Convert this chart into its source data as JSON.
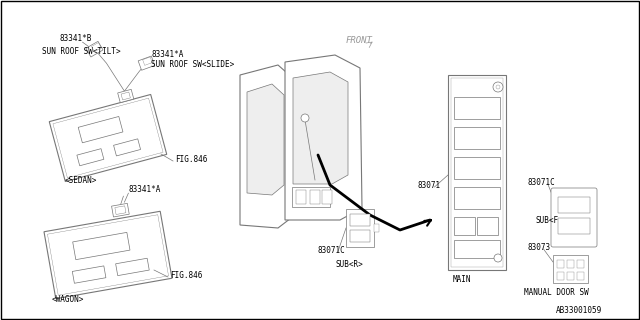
{
  "bg_color": "#FFFFFF",
  "lc": "#777777",
  "tc": "#000000",
  "labels": {
    "sedan": "<SEDAN>",
    "wagon": "<WAGON>",
    "fig846_sedan": "FIG.846",
    "fig846_wagon": "FIG.846",
    "front": "FRONT",
    "main": "MAIN",
    "subr": "SUB<R>",
    "subf": "SUB<F>",
    "p83341b": "83341*B",
    "p83341a_tilt": "83341*A",
    "sun_roof_tilt": "SUN ROOF SW<TILT>",
    "sun_roof_slide": "SUN ROOF SW<SLIDE>",
    "p83341a_wagon": "83341*A",
    "p83071": "83071",
    "p83071c_subr": "83071C",
    "p83071c_subf": "83071C",
    "p83073": "83073",
    "manual_door": "MANUAL DOOR SW",
    "catalog_no": "AB33001059"
  },
  "fs": 5.5,
  "tl": 0.5,
  "ml": 0.8
}
